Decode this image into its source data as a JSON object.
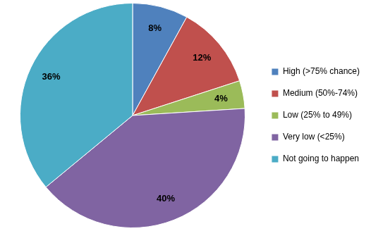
{
  "chart_data": {
    "type": "pie",
    "categories": [
      "High (>75% chance)",
      "Medium (50%-74%)",
      "Low (25% to 49%)",
      "Very low (<25%)",
      "Not going to happen"
    ],
    "values": [
      8,
      12,
      4,
      40,
      36
    ],
    "value_labels": [
      "8%",
      "12%",
      "4%",
      "40%",
      "36%"
    ],
    "colors": [
      "#4f81bd",
      "#c0504d",
      "#9bbb59",
      "#8064a2",
      "#4bacc6"
    ],
    "data_labels": true,
    "legend": "right"
  }
}
